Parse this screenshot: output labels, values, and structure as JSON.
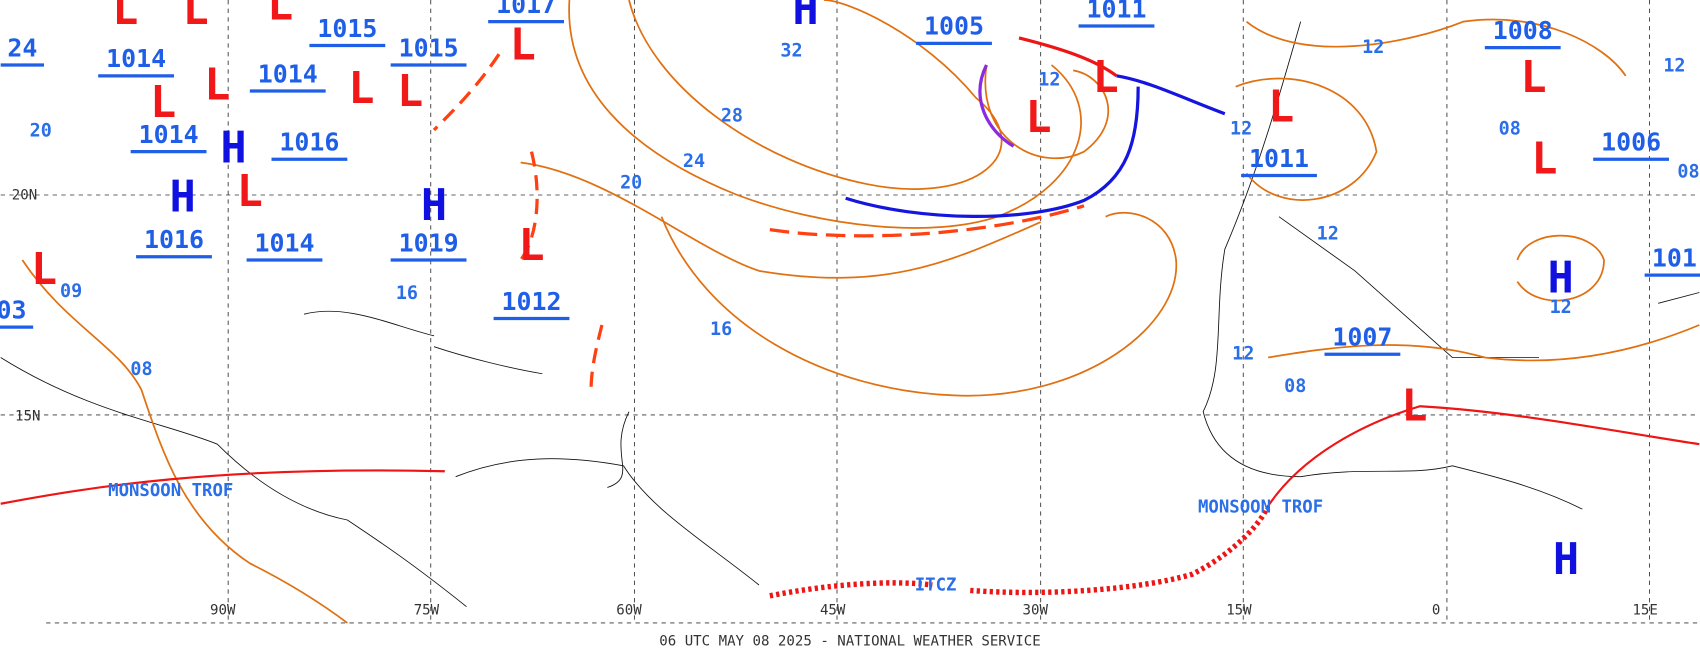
{
  "map": {
    "footer": "06 UTC MAY 08 2025 - NATIONAL WEATHER SERVICE",
    "pressure_labels": [
      "1017",
      "1005",
      "1011",
      "1008",
      "1014",
      "1015",
      "1015",
      "1014",
      "1014",
      "1016",
      "1016",
      "1014",
      "1019",
      "1012",
      "1011",
      "1006",
      "1007",
      "24",
      "03",
      "101"
    ],
    "highs": [
      "H",
      "H",
      "H",
      "H",
      "H",
      "H"
    ],
    "lows": [
      "L",
      "L",
      "L",
      "L",
      "L",
      "L",
      "L",
      "L",
      "L",
      "L",
      "L",
      "L",
      "L",
      "L",
      "L",
      "L",
      "L"
    ],
    "isobar_labels": [
      "32",
      "28",
      "24",
      "20",
      "16",
      "12",
      "12",
      "12",
      "12",
      "12",
      "12",
      "08",
      "08",
      "08",
      "20",
      "16",
      "09",
      "12",
      "08"
    ],
    "latitude_labels": [
      "20N",
      "15N"
    ],
    "longitude_labels": [
      "90W",
      "75W",
      "60W",
      "45W",
      "30W",
      "15W",
      "0",
      "15E"
    ],
    "features": [
      "MONSOON TROF",
      "MONSOON TROF",
      "ITCZ"
    ]
  }
}
